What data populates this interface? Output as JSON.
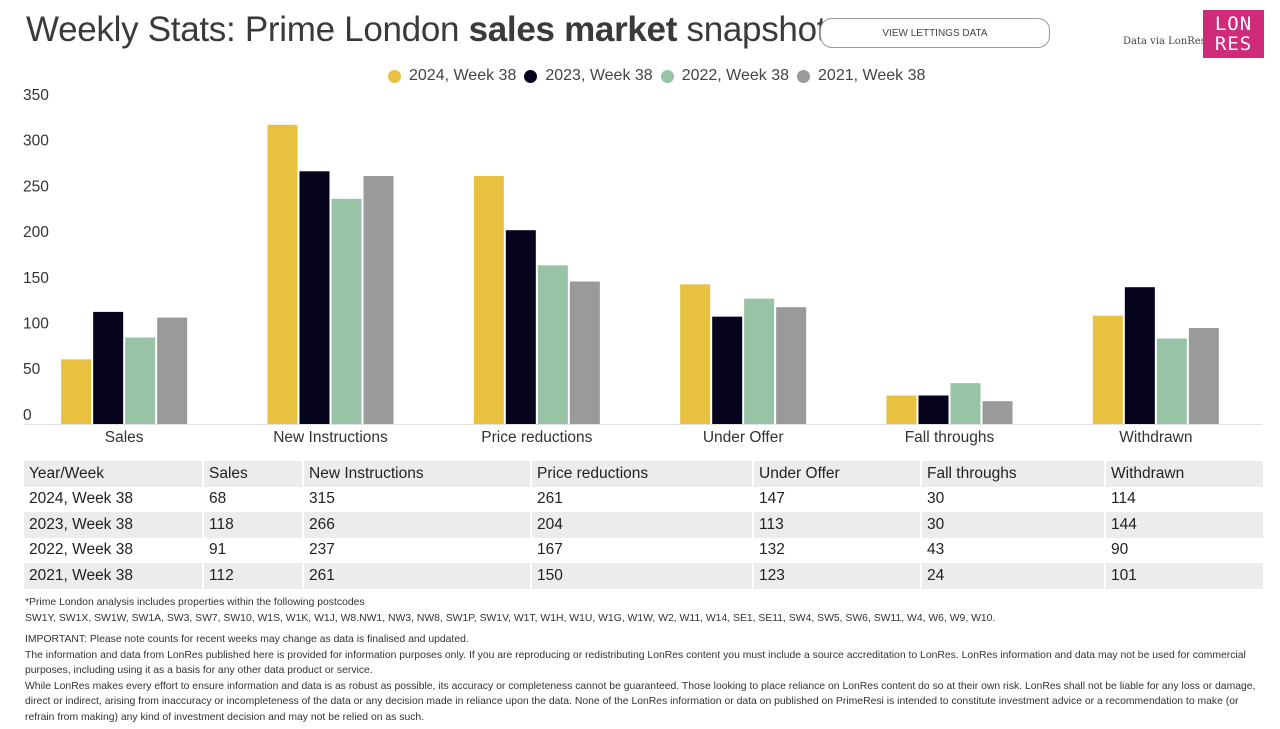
{
  "header": {
    "title_part1": "Weekly Stats: Prime London ",
    "title_bold": "sales market",
    "title_part2": " snapshot",
    "lettings_button": "VIEW LETTINGS DATA",
    "data_via": "Data via LonRes",
    "logo_line1": "LON",
    "logo_line2": "RES"
  },
  "colors": {
    "2024": "#e8c141",
    "2023": "#06041c",
    "2022": "#98c3a6",
    "2021": "#9a9a9a",
    "brand": "#d02a7b"
  },
  "chart_data": {
    "type": "bar",
    "title": "Weekly Stats: Prime London sales market snapshot",
    "xlabel": "",
    "ylabel": "",
    "ylim": [
      0,
      350
    ],
    "yticks": [
      0,
      50,
      100,
      150,
      200,
      250,
      300,
      350
    ],
    "legend_position": "top",
    "grid": false,
    "categories": [
      "Sales",
      "New Instructions",
      "Price reductions",
      "Under Offer",
      "Fall throughs",
      "Withdrawn"
    ],
    "series": [
      {
        "name": "2024, Week 38",
        "color": "#e8c141",
        "values": [
          68,
          315,
          261,
          147,
          30,
          114
        ]
      },
      {
        "name": "2023, Week 38",
        "color": "#06041c",
        "values": [
          118,
          266,
          204,
          113,
          30,
          144
        ]
      },
      {
        "name": "2022, Week 38",
        "color": "#98c3a6",
        "values": [
          91,
          237,
          167,
          132,
          43,
          90
        ]
      },
      {
        "name": "2021, Week 38",
        "color": "#9a9a9a",
        "values": [
          112,
          261,
          150,
          123,
          24,
          101
        ]
      }
    ]
  },
  "table": {
    "headers": [
      "Year/Week",
      "Sales",
      "New Instructions",
      "Price reductions",
      "Under Offer",
      "Fall throughs",
      "Withdrawn"
    ],
    "rows": [
      [
        "2024, Week 38",
        "68",
        "315",
        "261",
        "147",
        "30",
        "114"
      ],
      [
        "2023, Week 38",
        "118",
        "266",
        "204",
        "113",
        "30",
        "144"
      ],
      [
        "2022, Week 38",
        "91",
        "237",
        "167",
        "132",
        "43",
        "90"
      ],
      [
        "2021, Week 38",
        "112",
        "261",
        "150",
        "123",
        "24",
        "101"
      ]
    ]
  },
  "notes": {
    "postcodes_intro": "*Prime London analysis includes properties within the following postcodes",
    "postcodes": "SW1Y, SW1X, SW1W, SW1A, SW3, SW7, SW10, W1S, W1K, W1J, W8.NW1, NW3, NW8, SW1P, SW1V, W1T, W1H, W1U, W1G, W1W, W2, W11, W14, SE1, SE11, SW4, SW5, SW6, SW11, W4, W6, W9, W10.",
    "important": "IMPORTANT: Please note counts for recent weeks may change as data is finalised and updated.",
    "disclaimer1": "The information and data from LonRes published here is provided for information purposes only. If you are reproducing or redistributing LonRes content you must include a source accreditation to LonRes. LonRes information and data may not be used for commercial purposes, including using it as a basis for any other data product or service.",
    "disclaimer2": "While LonRes makes every effort to ensure information and data is as robust as possible, its accuracy or completeness cannot be guaranteed. Those looking to place reliance on LonRes content do so at their own risk. LonRes shall not be liable for any loss or damage, direct or indirect, arising from inaccuracy or incompleteness of the data or any decision made in reliance upon the data. None of the LonRes information or data on published on PrimeResi is intended to constitute investment advice or a recommendation to make (or refrain from making) any kind of investment decision and may not be relied on as such."
  }
}
